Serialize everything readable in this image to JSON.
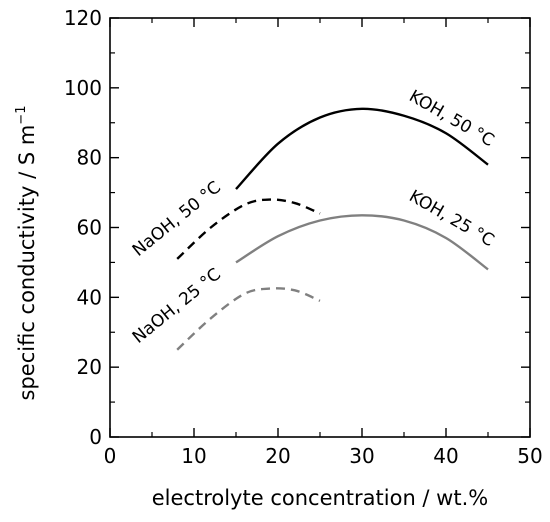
{
  "chart_data": {
    "type": "line",
    "xlabel": "electrolyte concentration / wt.%",
    "ylabel": "specific conductivity / S m",
    "ylabel_superscript": "−1",
    "xlim": [
      0,
      50
    ],
    "ylim": [
      0,
      120
    ],
    "x_ticks": [
      "0",
      "10",
      "20",
      "30",
      "40",
      "50"
    ],
    "y_ticks": [
      "0",
      "20",
      "40",
      "60",
      "80",
      "100",
      "120"
    ],
    "grid": false,
    "legend": "none (series labeled inline)",
    "series": [
      {
        "name": "KOH, 50 °C",
        "color": "#000000",
        "dash": "solid",
        "x": [
          15,
          20,
          25,
          30,
          35,
          40,
          45
        ],
        "y": [
          71,
          84,
          91.5,
          94,
          92,
          87,
          78
        ]
      },
      {
        "name": "KOH, 25 °C",
        "color": "#808080",
        "dash": "solid",
        "x": [
          15,
          20,
          25,
          30,
          35,
          40,
          45
        ],
        "y": [
          50,
          57.5,
          62,
          63.5,
          62,
          57,
          48
        ]
      },
      {
        "name": "NaOH, 50 °C",
        "color": "#000000",
        "dash": "dashed",
        "x": [
          8,
          12,
          16,
          19,
          22,
          25
        ],
        "y": [
          51,
          60,
          66.5,
          68,
          67,
          64
        ]
      },
      {
        "name": "NaOH, 25 °C",
        "color": "#808080",
        "dash": "dashed",
        "x": [
          8,
          12,
          16,
          19,
          22,
          25
        ],
        "y": [
          25,
          34,
          41,
          42.5,
          42,
          39
        ]
      }
    ]
  }
}
